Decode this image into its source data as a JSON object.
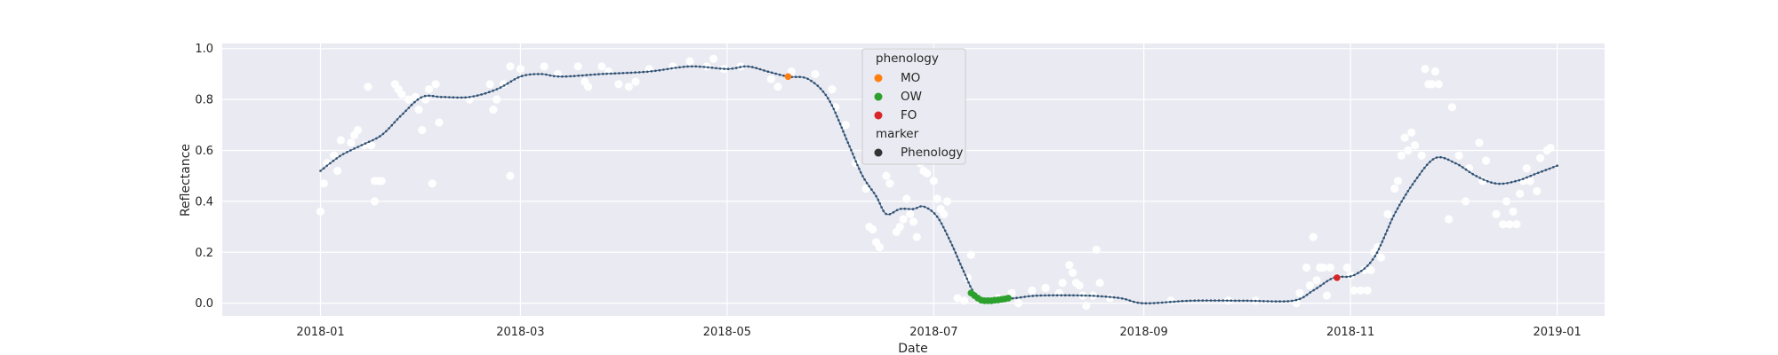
{
  "chart_data": {
    "type": "scatter",
    "xlabel": "Date",
    "ylabel": "Reflectance",
    "xlim": [
      "2017-12-03",
      "2019-01-15"
    ],
    "ylim": [
      -0.05,
      1.02
    ],
    "x_ticks": [
      "2018-01",
      "2018-03",
      "2018-05",
      "2018-07",
      "2018-09",
      "2018-11",
      "2019-01"
    ],
    "y_ticks": [
      "0.0",
      "0.2",
      "0.4",
      "0.6",
      "0.8",
      "1.0"
    ],
    "grid": true,
    "legend_position": "upper-center",
    "colors": {
      "background": "#EAEAF2",
      "grid": "#FFFFFF",
      "observations": "#FFFFFF",
      "fit_line": "#4C6D8C",
      "fit_dots": "#2F4F6F",
      "MO": "#FF7F0E",
      "OW": "#2CA02C",
      "FO": "#D62728",
      "marker": "#333333"
    },
    "legend": {
      "phenology_title": "phenology",
      "phenology_items": [
        {
          "label": "MO",
          "color": "#FF7F0E"
        },
        {
          "label": "OW",
          "color": "#2CA02C"
        },
        {
          "label": "FO",
          "color": "#D62728"
        }
      ],
      "marker_title": "marker",
      "marker_items": [
        {
          "label": "Phenology",
          "color": "#333333"
        }
      ]
    },
    "fit_curve": [
      [
        "2018-01-01",
        0.52
      ],
      [
        "2018-01-07",
        0.58
      ],
      [
        "2018-01-13",
        0.62
      ],
      [
        "2018-01-19",
        0.66
      ],
      [
        "2018-01-25",
        0.74
      ],
      [
        "2018-01-31",
        0.81
      ],
      [
        "2018-02-06",
        0.81
      ],
      [
        "2018-02-14",
        0.81
      ],
      [
        "2018-02-22",
        0.84
      ],
      [
        "2018-03-01",
        0.89
      ],
      [
        "2018-03-07",
        0.9
      ],
      [
        "2018-03-13",
        0.89
      ],
      [
        "2018-03-25",
        0.9
      ],
      [
        "2018-04-08",
        0.91
      ],
      [
        "2018-04-20",
        0.93
      ],
      [
        "2018-05-01",
        0.92
      ],
      [
        "2018-05-07",
        0.93
      ],
      [
        "2018-05-13",
        0.91
      ],
      [
        "2018-05-19",
        0.89
      ],
      [
        "2018-05-25",
        0.88
      ],
      [
        "2018-05-31",
        0.8
      ],
      [
        "2018-06-06",
        0.62
      ],
      [
        "2018-06-10",
        0.5
      ],
      [
        "2018-06-14",
        0.42
      ],
      [
        "2018-06-17",
        0.35
      ],
      [
        "2018-06-21",
        0.37
      ],
      [
        "2018-06-25",
        0.37
      ],
      [
        "2018-06-28",
        0.38
      ],
      [
        "2018-07-02",
        0.34
      ],
      [
        "2018-07-06",
        0.24
      ],
      [
        "2018-07-10",
        0.12
      ],
      [
        "2018-07-13",
        0.04
      ],
      [
        "2018-07-17",
        0.01
      ],
      [
        "2018-07-21",
        0.015
      ],
      [
        "2018-07-25",
        0.02
      ],
      [
        "2018-08-01",
        0.03
      ],
      [
        "2018-08-15",
        0.03
      ],
      [
        "2018-08-25",
        0.02
      ],
      [
        "2018-09-01",
        0.0
      ],
      [
        "2018-09-15",
        0.01
      ],
      [
        "2018-10-01",
        0.01
      ],
      [
        "2018-10-15",
        0.01
      ],
      [
        "2018-10-21",
        0.05
      ],
      [
        "2018-10-27",
        0.1
      ],
      [
        "2018-11-02",
        0.11
      ],
      [
        "2018-11-08",
        0.18
      ],
      [
        "2018-11-14",
        0.35
      ],
      [
        "2018-11-20",
        0.48
      ],
      [
        "2018-11-26",
        0.57
      ],
      [
        "2018-12-02",
        0.55
      ],
      [
        "2018-12-08",
        0.5
      ],
      [
        "2018-12-14",
        0.47
      ],
      [
        "2018-12-20",
        0.48
      ],
      [
        "2018-12-26",
        0.51
      ],
      [
        "2019-01-01",
        0.54
      ]
    ],
    "observations": [
      [
        "2018-01-01",
        0.36
      ],
      [
        "2018-01-02",
        0.47
      ],
      [
        "2018-01-03",
        0.55
      ],
      [
        "2018-01-05",
        0.58
      ],
      [
        "2018-01-06",
        0.52
      ],
      [
        "2018-01-07",
        0.64
      ],
      [
        "2018-01-10",
        0.63
      ],
      [
        "2018-01-11",
        0.66
      ],
      [
        "2018-01-12",
        0.68
      ],
      [
        "2018-01-14",
        0.62
      ],
      [
        "2018-01-15",
        0.85
      ],
      [
        "2018-01-16",
        0.62
      ],
      [
        "2018-01-17",
        0.48
      ],
      [
        "2018-01-17",
        0.4
      ],
      [
        "2018-01-18",
        0.48
      ],
      [
        "2018-01-19",
        0.48
      ],
      [
        "2018-01-23",
        0.86
      ],
      [
        "2018-01-24",
        0.84
      ],
      [
        "2018-01-25",
        0.82
      ],
      [
        "2018-01-27",
        0.8
      ],
      [
        "2018-01-29",
        0.81
      ],
      [
        "2018-01-30",
        0.76
      ],
      [
        "2018-01-31",
        0.68
      ],
      [
        "2018-02-01",
        0.8
      ],
      [
        "2018-02-02",
        0.84
      ],
      [
        "2018-02-03",
        0.47
      ],
      [
        "2018-02-04",
        0.86
      ],
      [
        "2018-02-05",
        0.71
      ],
      [
        "2018-02-14",
        0.8
      ],
      [
        "2018-02-20",
        0.86
      ],
      [
        "2018-02-21",
        0.76
      ],
      [
        "2018-02-22",
        0.8
      ],
      [
        "2018-02-24",
        0.86
      ],
      [
        "2018-02-26",
        0.93
      ],
      [
        "2018-02-26",
        0.5
      ],
      [
        "2018-03-01",
        0.92
      ],
      [
        "2018-03-08",
        0.93
      ],
      [
        "2018-03-12",
        0.9
      ],
      [
        "2018-03-18",
        0.93
      ],
      [
        "2018-03-20",
        0.87
      ],
      [
        "2018-03-21",
        0.85
      ],
      [
        "2018-03-25",
        0.93
      ],
      [
        "2018-03-27",
        0.91
      ],
      [
        "2018-03-30",
        0.86
      ],
      [
        "2018-04-02",
        0.85
      ],
      [
        "2018-04-04",
        0.87
      ],
      [
        "2018-04-08",
        0.92
      ],
      [
        "2018-04-15",
        0.93
      ],
      [
        "2018-04-20",
        0.95
      ],
      [
        "2018-04-25",
        0.93
      ],
      [
        "2018-04-27",
        0.96
      ],
      [
        "2018-04-30",
        0.92
      ],
      [
        "2018-05-05",
        0.93
      ],
      [
        "2018-05-14",
        0.88
      ],
      [
        "2018-05-16",
        0.85
      ],
      [
        "2018-05-20",
        0.91
      ],
      [
        "2018-05-27",
        0.9
      ],
      [
        "2018-06-01",
        0.84
      ],
      [
        "2018-06-02",
        0.77
      ],
      [
        "2018-06-05",
        0.7
      ],
      [
        "2018-06-08",
        0.55
      ],
      [
        "2018-06-11",
        0.45
      ],
      [
        "2018-06-12",
        0.3
      ],
      [
        "2018-06-13",
        0.29
      ],
      [
        "2018-06-14",
        0.24
      ],
      [
        "2018-06-15",
        0.22
      ],
      [
        "2018-06-17",
        0.5
      ],
      [
        "2018-06-18",
        0.47
      ],
      [
        "2018-06-20",
        0.28
      ],
      [
        "2018-06-21",
        0.3
      ],
      [
        "2018-06-22",
        0.33
      ],
      [
        "2018-06-23",
        0.41
      ],
      [
        "2018-06-24",
        0.35
      ],
      [
        "2018-06-25",
        0.32
      ],
      [
        "2018-06-26",
        0.26
      ],
      [
        "2018-06-27",
        0.55
      ],
      [
        "2018-06-28",
        0.52
      ],
      [
        "2018-06-29",
        0.51
      ],
      [
        "2018-07-01",
        0.48
      ],
      [
        "2018-07-02",
        0.41
      ],
      [
        "2018-07-03",
        0.37
      ],
      [
        "2018-07-04",
        0.35
      ],
      [
        "2018-07-05",
        0.4
      ],
      [
        "2018-07-08",
        0.02
      ],
      [
        "2018-07-10",
        0.01
      ],
      [
        "2018-07-11",
        0.1
      ],
      [
        "2018-07-12",
        0.19
      ],
      [
        "2018-07-20",
        0.02
      ],
      [
        "2018-07-24",
        0.04
      ],
      [
        "2018-07-26",
        0.0
      ],
      [
        "2018-07-30",
        0.05
      ],
      [
        "2018-08-03",
        0.06
      ],
      [
        "2018-08-07",
        0.04
      ],
      [
        "2018-08-08",
        0.08
      ],
      [
        "2018-08-10",
        0.15
      ],
      [
        "2018-08-11",
        0.12
      ],
      [
        "2018-08-12",
        0.08
      ],
      [
        "2018-08-13",
        0.07
      ],
      [
        "2018-08-14",
        0.03
      ],
      [
        "2018-08-15",
        -0.01
      ],
      [
        "2018-08-17",
        0.03
      ],
      [
        "2018-08-18",
        0.21
      ],
      [
        "2018-08-19",
        0.08
      ],
      [
        "2018-08-22",
        0.02
      ],
      [
        "2018-09-09",
        0.01
      ],
      [
        "2018-09-26",
        0.01
      ],
      [
        "2018-10-04",
        0.01
      ],
      [
        "2018-10-16",
        0.0
      ],
      [
        "2018-10-17",
        0.04
      ],
      [
        "2018-10-19",
        0.14
      ],
      [
        "2018-10-20",
        0.07
      ],
      [
        "2018-10-21",
        0.26
      ],
      [
        "2018-10-22",
        0.09
      ],
      [
        "2018-10-23",
        0.14
      ],
      [
        "2018-10-24",
        0.14
      ],
      [
        "2018-10-25",
        0.03
      ],
      [
        "2018-10-26",
        0.14
      ],
      [
        "2018-10-28",
        0.1
      ],
      [
        "2018-10-31",
        0.14
      ],
      [
        "2018-11-01",
        0.11
      ],
      [
        "2018-11-02",
        0.05
      ],
      [
        "2018-11-04",
        0.05
      ],
      [
        "2018-11-05",
        0.13
      ],
      [
        "2018-11-06",
        0.05
      ],
      [
        "2018-11-07",
        0.13
      ],
      [
        "2018-11-08",
        0.2
      ],
      [
        "2018-11-09",
        0.22
      ],
      [
        "2018-11-10",
        0.18
      ],
      [
        "2018-11-12",
        0.35
      ],
      [
        "2018-11-14",
        0.45
      ],
      [
        "2018-11-15",
        0.48
      ],
      [
        "2018-11-16",
        0.58
      ],
      [
        "2018-11-17",
        0.65
      ],
      [
        "2018-11-18",
        0.6
      ],
      [
        "2018-11-19",
        0.67
      ],
      [
        "2018-11-20",
        0.62
      ],
      [
        "2018-11-22",
        0.58
      ],
      [
        "2018-11-23",
        0.92
      ],
      [
        "2018-11-24",
        0.86
      ],
      [
        "2018-11-25",
        0.86
      ],
      [
        "2018-11-26",
        0.91
      ],
      [
        "2018-11-27",
        0.86
      ],
      [
        "2018-11-30",
        0.33
      ],
      [
        "2018-12-01",
        0.77
      ],
      [
        "2018-12-03",
        0.58
      ],
      [
        "2018-12-05",
        0.4
      ],
      [
        "2018-12-06",
        0.53
      ],
      [
        "2018-12-09",
        0.63
      ],
      [
        "2018-12-10",
        0.48
      ],
      [
        "2018-12-11",
        0.56
      ],
      [
        "2018-12-14",
        0.35
      ],
      [
        "2018-12-16",
        0.31
      ],
      [
        "2018-12-17",
        0.4
      ],
      [
        "2018-12-18",
        0.31
      ],
      [
        "2018-12-19",
        0.36
      ],
      [
        "2018-12-20",
        0.31
      ],
      [
        "2018-12-21",
        0.43
      ],
      [
        "2018-12-22",
        0.48
      ],
      [
        "2018-12-23",
        0.53
      ],
      [
        "2018-12-24",
        0.48
      ],
      [
        "2018-12-26",
        0.44
      ],
      [
        "2018-12-27",
        0.57
      ],
      [
        "2018-12-29",
        0.6
      ],
      [
        "2018-12-30",
        0.61
      ]
    ],
    "phenology_points": [
      {
        "class": "MO",
        "x": "2018-05-19",
        "y": 0.89
      },
      {
        "class": "OW",
        "x": "2018-07-12",
        "y": 0.04
      },
      {
        "class": "OW",
        "x": "2018-07-13",
        "y": 0.03
      },
      {
        "class": "OW",
        "x": "2018-07-14",
        "y": 0.02
      },
      {
        "class": "OW",
        "x": "2018-07-15",
        "y": 0.012
      },
      {
        "class": "OW",
        "x": "2018-07-16",
        "y": 0.01
      },
      {
        "class": "OW",
        "x": "2018-07-17",
        "y": 0.01
      },
      {
        "class": "OW",
        "x": "2018-07-18",
        "y": 0.01
      },
      {
        "class": "OW",
        "x": "2018-07-19",
        "y": 0.012
      },
      {
        "class": "OW",
        "x": "2018-07-20",
        "y": 0.013
      },
      {
        "class": "OW",
        "x": "2018-07-21",
        "y": 0.015
      },
      {
        "class": "OW",
        "x": "2018-07-22",
        "y": 0.017
      },
      {
        "class": "OW",
        "x": "2018-07-23",
        "y": 0.02
      },
      {
        "class": "FO",
        "x": "2018-10-28",
        "y": 0.1
      }
    ]
  }
}
